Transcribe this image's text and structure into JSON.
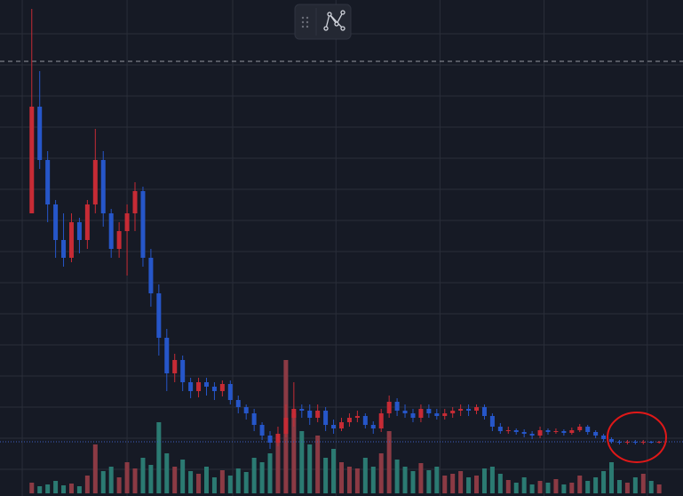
{
  "chart_data": {
    "type": "candlestick",
    "open": [
      318,
      438,
      378,
      328,
      288,
      268,
      308,
      288,
      328,
      378,
      318,
      278,
      298,
      318,
      343,
      268,
      228,
      178,
      138,
      153,
      128,
      118,
      128,
      123,
      118,
      126,
      108,
      100,
      93,
      80,
      68,
      60,
      70,
      88,
      98,
      96,
      88,
      96,
      80,
      76,
      83,
      88,
      90,
      80,
      76,
      93,
      106,
      96,
      93,
      88,
      98,
      93,
      90,
      93,
      96,
      98,
      96,
      100,
      90,
      78,
      73,
      74,
      72,
      70,
      68,
      74,
      72,
      73,
      71,
      74,
      78,
      72,
      68,
      64,
      61,
      60,
      61,
      60,
      61,
      60
    ],
    "high": [
      548,
      478,
      388,
      333,
      318,
      318,
      313,
      333,
      413,
      388,
      323,
      308,
      328,
      353,
      348,
      278,
      238,
      188,
      160,
      158,
      133,
      133,
      133,
      128,
      130,
      130,
      113,
      103,
      98,
      83,
      73,
      78,
      103,
      128,
      103,
      103,
      103,
      100,
      86,
      88,
      93,
      96,
      93,
      84,
      98,
      113,
      110,
      103,
      98,
      103,
      103,
      98,
      98,
      100,
      103,
      103,
      103,
      103,
      93,
      82,
      78,
      76,
      75,
      73,
      78,
      76,
      76,
      75,
      77,
      81,
      80,
      74,
      70,
      66,
      63,
      63,
      63,
      63,
      62,
      62
    ],
    "low": [
      318,
      368,
      308,
      268,
      258,
      263,
      273,
      278,
      318,
      303,
      268,
      268,
      248,
      298,
      258,
      213,
      158,
      118,
      128,
      118,
      110,
      111,
      113,
      108,
      112,
      103,
      93,
      86,
      73,
      63,
      53,
      56,
      66,
      78,
      88,
      80,
      83,
      73,
      70,
      73,
      78,
      83,
      76,
      70,
      72,
      88,
      90,
      88,
      83,
      83,
      88,
      86,
      86,
      88,
      90,
      90,
      92,
      86,
      73,
      70,
      70,
      69,
      66,
      64,
      65,
      69,
      70,
      68,
      69,
      72,
      69,
      65,
      61,
      59,
      58,
      58,
      58,
      58,
      59,
      59
    ],
    "close": [
      438,
      378,
      328,
      288,
      268,
      308,
      288,
      328,
      378,
      318,
      278,
      298,
      318,
      343,
      268,
      228,
      178,
      138,
      153,
      128,
      118,
      128,
      123,
      118,
      126,
      108,
      100,
      93,
      80,
      68,
      60,
      70,
      88,
      98,
      96,
      88,
      96,
      80,
      76,
      83,
      88,
      90,
      80,
      76,
      93,
      106,
      96,
      93,
      88,
      98,
      93,
      90,
      93,
      96,
      98,
      96,
      100,
      90,
      78,
      73,
      74,
      72,
      70,
      68,
      74,
      72,
      73,
      71,
      74,
      78,
      72,
      68,
      64,
      61,
      60,
      61,
      60,
      61,
      60,
      61
    ],
    "volume": [
      12,
      8,
      10,
      14,
      9,
      11,
      8,
      20,
      55,
      25,
      30,
      18,
      35,
      28,
      40,
      32,
      80,
      45,
      30,
      38,
      25,
      22,
      30,
      18,
      26,
      20,
      28,
      24,
      40,
      35,
      45,
      60,
      150,
      90,
      70,
      55,
      65,
      40,
      50,
      35,
      30,
      28,
      40,
      30,
      45,
      70,
      38,
      30,
      25,
      34,
      26,
      30,
      20,
      22,
      25,
      18,
      20,
      28,
      30,
      22,
      15,
      12,
      18,
      10,
      14,
      12,
      16,
      10,
      12,
      20,
      14,
      18,
      25,
      35,
      15,
      12,
      18,
      22,
      14,
      10
    ],
    "up_color": "#c62b35",
    "down_color": "#2656c9",
    "volume_up_color": "#8b3a44",
    "volume_down_color": "#2b7a72",
    "ylim": [
      0,
      558
    ],
    "yticks": [
      520,
      485,
      450,
      415,
      380,
      345,
      310,
      275,
      240,
      205,
      170,
      135,
      100,
      65,
      30
    ],
    "xlim": [
      -4,
      82
    ],
    "xticks": [
      -1.2,
      12,
      25.3,
      38.3,
      51.4,
      64.5,
      77.5
    ],
    "y2lim": [
      0,
      160
    ],
    "grid": true,
    "price_lines": [
      {
        "value": 489,
        "style": "dashed",
        "color": "#9598a1"
      },
      {
        "value": 61,
        "style": "dotted",
        "color": "#3d5fc4"
      }
    ]
  }
}
